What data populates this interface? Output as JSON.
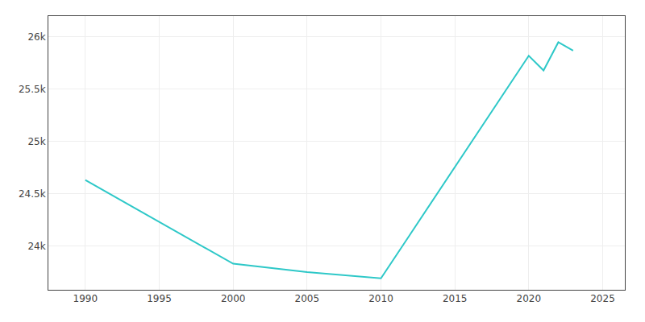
{
  "chart_data": {
    "type": "line",
    "x": [
      1990,
      2000,
      2005,
      2010,
      2020,
      2021,
      2022,
      2023
    ],
    "values": [
      24630,
      23830,
      23750,
      23690,
      25820,
      25680,
      25950,
      25870
    ],
    "color": "#2ec8c8",
    "xlim": [
      1987.5,
      2026.5
    ],
    "ylim": [
      23580,
      26200
    ],
    "xticks": [
      1990,
      1995,
      2000,
      2005,
      2010,
      2015,
      2020,
      2025
    ],
    "yticks": [
      {
        "value": 24000,
        "label": "24k"
      },
      {
        "value": 24500,
        "label": "24.5k"
      },
      {
        "value": 25000,
        "label": "25k"
      },
      {
        "value": 25500,
        "label": "25.5k"
      },
      {
        "value": 26000,
        "label": "26k"
      }
    ],
    "grid": true
  }
}
